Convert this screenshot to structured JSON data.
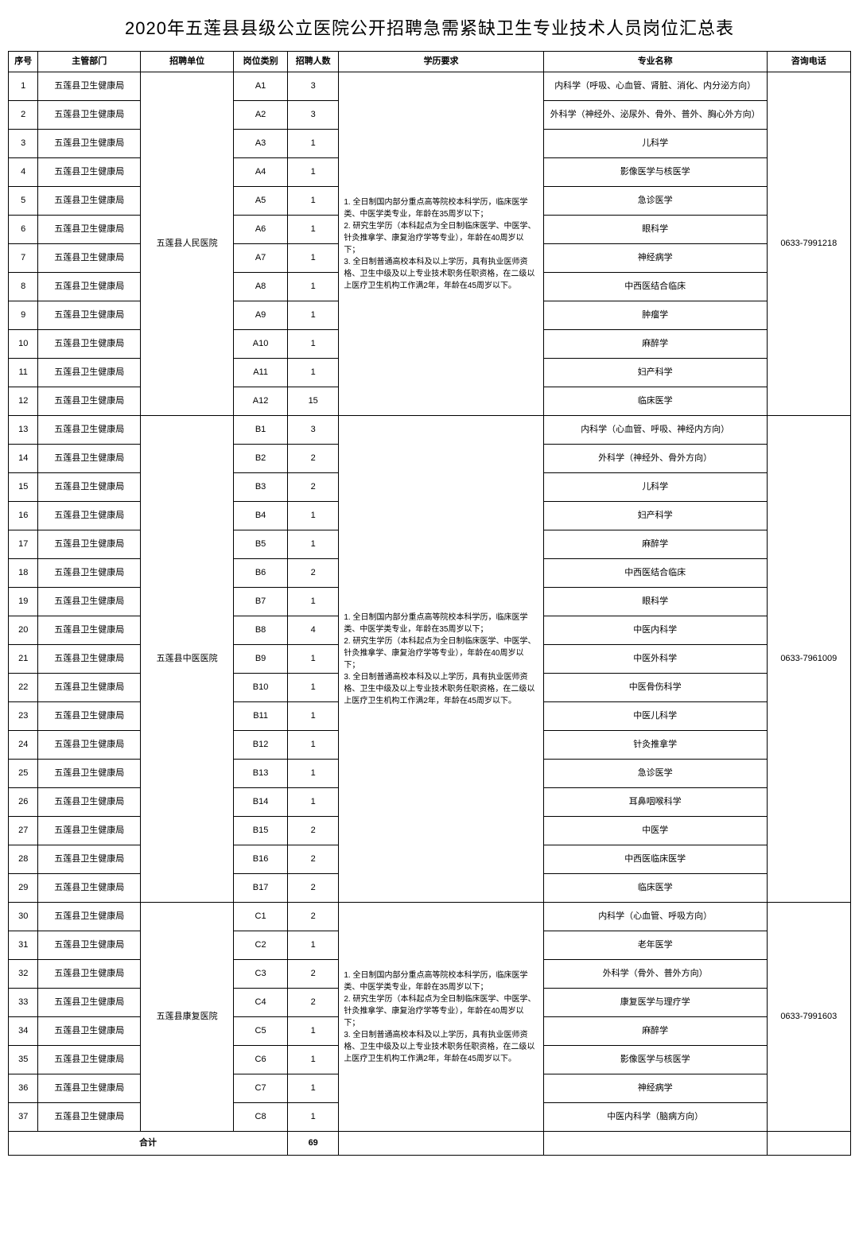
{
  "title": "2020年五莲县县级公立医院公开招聘急需紧缺卫生专业技术人员岗位汇总表",
  "headers": {
    "seq": "序号",
    "dept": "主管部门",
    "unit": "招聘单位",
    "post": "岗位类别",
    "num": "招聘人数",
    "req": "学历要求",
    "major": "专业名称",
    "tel": "咨询电话"
  },
  "dept_label": "五莲县卫生健康局",
  "groups": [
    {
      "unit": "五莲县人民医院",
      "tel": "0633-7991218",
      "req": "1. 全日制国内部分重点高等院校本科学历，临床医学类、中医学类专业，年龄在35周岁以下；\n2. 研究生学历（本科起点为全日制临床医学、中医学、针灸推拿学、康复治疗学等专业），年龄在40周岁以下；\n3. 全日制普通高校本科及以上学历，具有执业医师资格、卫生中级及以上专业技术职务任职资格，在二级以上医疗卫生机构工作满2年，年龄在45周岁以下。",
      "rows": [
        {
          "seq": "1",
          "post": "A1",
          "num": "3",
          "major": "内科学（呼吸、心血管、肾脏、消化、内分泌方向）"
        },
        {
          "seq": "2",
          "post": "A2",
          "num": "3",
          "major": "外科学（神经外、泌尿外、骨外、普外、胸心外方向）"
        },
        {
          "seq": "3",
          "post": "A3",
          "num": "1",
          "major": "儿科学"
        },
        {
          "seq": "4",
          "post": "A4",
          "num": "1",
          "major": "影像医学与核医学"
        },
        {
          "seq": "5",
          "post": "A5",
          "num": "1",
          "major": "急诊医学"
        },
        {
          "seq": "6",
          "post": "A6",
          "num": "1",
          "major": "眼科学"
        },
        {
          "seq": "7",
          "post": "A7",
          "num": "1",
          "major": "神经病学"
        },
        {
          "seq": "8",
          "post": "A8",
          "num": "1",
          "major": "中西医结合临床"
        },
        {
          "seq": "9",
          "post": "A9",
          "num": "1",
          "major": "肿瘤学"
        },
        {
          "seq": "10",
          "post": "A10",
          "num": "1",
          "major": "麻醉学"
        },
        {
          "seq": "11",
          "post": "A11",
          "num": "1",
          "major": "妇产科学"
        },
        {
          "seq": "12",
          "post": "A12",
          "num": "15",
          "major": "临床医学"
        }
      ]
    },
    {
      "unit": "五莲县中医医院",
      "tel": "0633-7961009",
      "req": "1. 全日制国内部分重点高等院校本科学历，临床医学类、中医学类专业，年龄在35周岁以下；\n2. 研究生学历（本科起点为全日制临床医学、中医学、针灸推拿学、康复治疗学等专业），年龄在40周岁以下；\n3. 全日制普通高校本科及以上学历，具有执业医师资格、卫生中级及以上专业技术职务任职资格，在二级以上医疗卫生机构工作满2年，年龄在45周岁以下。",
      "rows": [
        {
          "seq": "13",
          "post": "B1",
          "num": "3",
          "major": "内科学（心血管、呼吸、神经内方向）"
        },
        {
          "seq": "14",
          "post": "B2",
          "num": "2",
          "major": "外科学（神经外、骨外方向）"
        },
        {
          "seq": "15",
          "post": "B3",
          "num": "2",
          "major": "儿科学"
        },
        {
          "seq": "16",
          "post": "B4",
          "num": "1",
          "major": "妇产科学"
        },
        {
          "seq": "17",
          "post": "B5",
          "num": "1",
          "major": "麻醉学"
        },
        {
          "seq": "18",
          "post": "B6",
          "num": "2",
          "major": "中西医结合临床"
        },
        {
          "seq": "19",
          "post": "B7",
          "num": "1",
          "major": "眼科学"
        },
        {
          "seq": "20",
          "post": "B8",
          "num": "4",
          "major": "中医内科学"
        },
        {
          "seq": "21",
          "post": "B9",
          "num": "1",
          "major": "中医外科学"
        },
        {
          "seq": "22",
          "post": "B10",
          "num": "1",
          "major": "中医骨伤科学"
        },
        {
          "seq": "23",
          "post": "B11",
          "num": "1",
          "major": "中医儿科学"
        },
        {
          "seq": "24",
          "post": "B12",
          "num": "1",
          "major": "针灸推拿学"
        },
        {
          "seq": "25",
          "post": "B13",
          "num": "1",
          "major": "急诊医学"
        },
        {
          "seq": "26",
          "post": "B14",
          "num": "1",
          "major": "耳鼻咽喉科学"
        },
        {
          "seq": "27",
          "post": "B15",
          "num": "2",
          "major": "中医学"
        },
        {
          "seq": "28",
          "post": "B16",
          "num": "2",
          "major": "中西医临床医学"
        },
        {
          "seq": "29",
          "post": "B17",
          "num": "2",
          "major": "临床医学"
        }
      ]
    },
    {
      "unit": "五莲县康复医院",
      "tel": "0633-7991603",
      "req": "1. 全日制国内部分重点高等院校本科学历，临床医学类、中医学类专业，年龄在35周岁以下；\n2. 研究生学历（本科起点为全日制临床医学、中医学、针灸推拿学、康复治疗学等专业），年龄在40周岁以下；\n3. 全日制普通高校本科及以上学历，具有执业医师资格、卫生中级及以上专业技术职务任职资格，在二级以上医疗卫生机构工作满2年，年龄在45周岁以下。",
      "rows": [
        {
          "seq": "30",
          "post": "C1",
          "num": "2",
          "major": "内科学（心血管、呼吸方向）"
        },
        {
          "seq": "31",
          "post": "C2",
          "num": "1",
          "major": "老年医学"
        },
        {
          "seq": "32",
          "post": "C3",
          "num": "2",
          "major": "外科学（骨外、普外方向）"
        },
        {
          "seq": "33",
          "post": "C4",
          "num": "2",
          "major": "康复医学与理疗学"
        },
        {
          "seq": "34",
          "post": "C5",
          "num": "1",
          "major": "麻醉学"
        },
        {
          "seq": "35",
          "post": "C6",
          "num": "1",
          "major": "影像医学与核医学"
        },
        {
          "seq": "36",
          "post": "C7",
          "num": "1",
          "major": "神经病学"
        },
        {
          "seq": "37",
          "post": "C8",
          "num": "1",
          "major": "中医内科学（脑病方向）"
        }
      ]
    }
  ],
  "footer": {
    "label": "合计",
    "total": "69"
  }
}
